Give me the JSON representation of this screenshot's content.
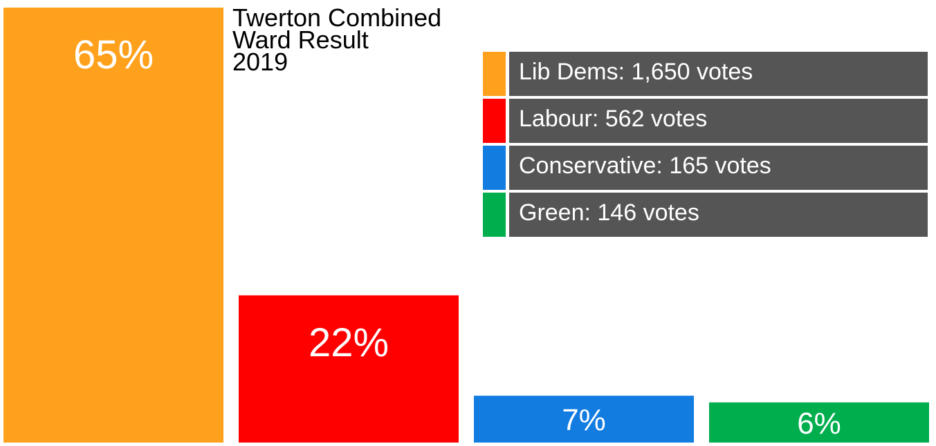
{
  "title_lines": [
    "Twerton Combined",
    "Ward Result",
    "2019"
  ],
  "chart_data": {
    "type": "bar",
    "title": "Twerton Combined Ward Result 2019",
    "categories": [
      "Lib Dems",
      "Labour",
      "Conservative",
      "Green"
    ],
    "values": [
      65,
      22,
      7,
      6
    ],
    "value_labels": [
      "65%",
      "22%",
      "7%",
      "6%"
    ],
    "colors": [
      "#FFA11C",
      "#FF0000",
      "#127CE1",
      "#00AE4E"
    ],
    "ylim": [
      0,
      65
    ],
    "grid": false,
    "legend_placement": "top-right",
    "legend": [
      {
        "label": "Lib Dems: 1,650 votes",
        "color": "#FFA11C"
      },
      {
        "label": "Labour: 562 votes",
        "color": "#FF0000"
      },
      {
        "label": "Conservative: 165 votes",
        "color": "#127CE1"
      },
      {
        "label": "Green: 146 votes",
        "color": "#00AE4E"
      }
    ]
  }
}
